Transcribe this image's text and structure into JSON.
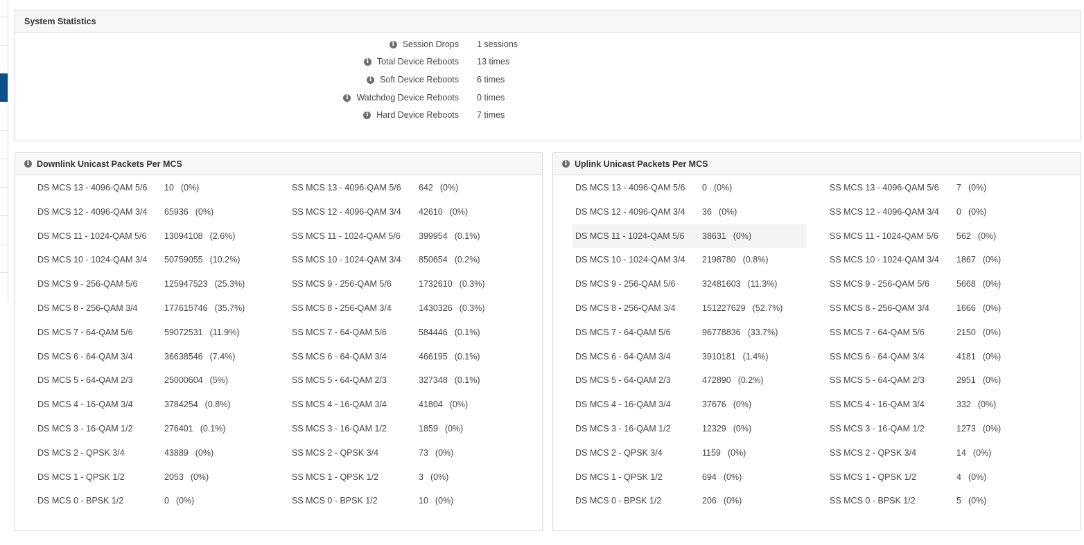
{
  "system_statistics": {
    "title": "System Statistics",
    "rows": [
      {
        "label": "Session Drops",
        "value": "1 sessions"
      },
      {
        "label": "Total Device Reboots",
        "value": "13 times"
      },
      {
        "label": "Soft Device Reboots",
        "value": "6 times"
      },
      {
        "label": "Watchdog Device Reboots",
        "value": "0 times"
      },
      {
        "label": "Hard Device Reboots",
        "value": "7 times"
      }
    ]
  },
  "downlink": {
    "title": "Downlink Unicast Packets Per MCS",
    "ds": [
      {
        "name": "DS MCS 13 - 4096-QAM 5/6",
        "count": "10",
        "pct": "(0%)"
      },
      {
        "name": "DS MCS 12 - 4096-QAM 3/4",
        "count": "65936",
        "pct": "(0%)"
      },
      {
        "name": "DS MCS 11 - 1024-QAM 5/6",
        "count": "13094108",
        "pct": "(2.6%)"
      },
      {
        "name": "DS MCS 10 - 1024-QAM 3/4",
        "count": "50759055",
        "pct": "(10.2%)"
      },
      {
        "name": "DS MCS 9 - 256-QAM 5/6",
        "count": "125947523",
        "pct": "(25.3%)"
      },
      {
        "name": "DS MCS 8 - 256-QAM 3/4",
        "count": "177615746",
        "pct": "(35.7%)"
      },
      {
        "name": "DS MCS 7 - 64-QAM 5/6",
        "count": "59072531",
        "pct": "(11.9%)"
      },
      {
        "name": "DS MCS 6 - 64-QAM 3/4",
        "count": "36638546",
        "pct": "(7.4%)"
      },
      {
        "name": "DS MCS 5 - 64-QAM 2/3",
        "count": "25000604",
        "pct": "(5%)"
      },
      {
        "name": "DS MCS 4 - 16-QAM 3/4",
        "count": "3784254",
        "pct": "(0.8%)"
      },
      {
        "name": "DS MCS 3 - 16-QAM 1/2",
        "count": "276401",
        "pct": "(0.1%)"
      },
      {
        "name": "DS MCS 2 - QPSK 3/4",
        "count": "43889",
        "pct": "(0%)"
      },
      {
        "name": "DS MCS 1 - QPSK 1/2",
        "count": "2053",
        "pct": "(0%)"
      },
      {
        "name": "DS MCS 0 - BPSK 1/2",
        "count": "0",
        "pct": "(0%)"
      }
    ],
    "ss": [
      {
        "name": "SS MCS 13 - 4096-QAM 5/6",
        "count": "642",
        "pct": "(0%)"
      },
      {
        "name": "SS MCS 12 - 4096-QAM 3/4",
        "count": "42610",
        "pct": "(0%)"
      },
      {
        "name": "SS MCS 11 - 1024-QAM 5/6",
        "count": "399954",
        "pct": "(0.1%)"
      },
      {
        "name": "SS MCS 10 - 1024-QAM 3/4",
        "count": "850654",
        "pct": "(0.2%)"
      },
      {
        "name": "SS MCS 9 - 256-QAM 5/6",
        "count": "1732610",
        "pct": "(0.3%)"
      },
      {
        "name": "SS MCS 8 - 256-QAM 3/4",
        "count": "1430326",
        "pct": "(0.3%)"
      },
      {
        "name": "SS MCS 7 - 64-QAM 5/6",
        "count": "584446",
        "pct": "(0.1%)"
      },
      {
        "name": "SS MCS 6 - 64-QAM 3/4",
        "count": "466195",
        "pct": "(0.1%)"
      },
      {
        "name": "SS MCS 5 - 64-QAM 2/3",
        "count": "327348",
        "pct": "(0.1%)"
      },
      {
        "name": "SS MCS 4 - 16-QAM 3/4",
        "count": "41804",
        "pct": "(0%)"
      },
      {
        "name": "SS MCS 3 - 16-QAM 1/2",
        "count": "1859",
        "pct": "(0%)"
      },
      {
        "name": "SS MCS 2 - QPSK 3/4",
        "count": "73",
        "pct": "(0%)"
      },
      {
        "name": "SS MCS 1 - QPSK 1/2",
        "count": "3",
        "pct": "(0%)"
      },
      {
        "name": "SS MCS 0 - BPSK 1/2",
        "count": "10",
        "pct": "(0%)"
      }
    ]
  },
  "uplink": {
    "title": "Uplink Unicast Packets Per MCS",
    "ds": [
      {
        "name": "DS MCS 13 - 4096-QAM 5/6",
        "count": "0",
        "pct": "(0%)"
      },
      {
        "name": "DS MCS 12 - 4096-QAM 3/4",
        "count": "36",
        "pct": "(0%)"
      },
      {
        "name": "DS MCS 11 - 1024-QAM 5/6",
        "count": "38631",
        "pct": "(0%)"
      },
      {
        "name": "DS MCS 10 - 1024-QAM 3/4",
        "count": "2198780",
        "pct": "(0.8%)"
      },
      {
        "name": "DS MCS 9 - 256-QAM 5/6",
        "count": "32481603",
        "pct": "(11.3%)"
      },
      {
        "name": "DS MCS 8 - 256-QAM 3/4",
        "count": "151227629",
        "pct": "(52.7%)"
      },
      {
        "name": "DS MCS 7 - 64-QAM 5/6",
        "count": "96778836",
        "pct": "(33.7%)"
      },
      {
        "name": "DS MCS 6 - 64-QAM 3/4",
        "count": "3910181",
        "pct": "(1.4%)"
      },
      {
        "name": "DS MCS 5 - 64-QAM 2/3",
        "count": "472890",
        "pct": "(0.2%)"
      },
      {
        "name": "DS MCS 4 - 16-QAM 3/4",
        "count": "37676",
        "pct": "(0%)"
      },
      {
        "name": "DS MCS 3 - 16-QAM 1/2",
        "count": "12329",
        "pct": "(0%)"
      },
      {
        "name": "DS MCS 2 - QPSK 3/4",
        "count": "1159",
        "pct": "(0%)"
      },
      {
        "name": "DS MCS 1 - QPSK 1/2",
        "count": "694",
        "pct": "(0%)"
      },
      {
        "name": "DS MCS 0 - BPSK 1/2",
        "count": "206",
        "pct": "(0%)"
      }
    ],
    "ss": [
      {
        "name": "SS MCS 13 - 4096-QAM 5/6",
        "count": "7",
        "pct": "(0%)"
      },
      {
        "name": "SS MCS 12 - 4096-QAM 3/4",
        "count": "0",
        "pct": "(0%)"
      },
      {
        "name": "SS MCS 11 - 1024-QAM 5/6",
        "count": "562",
        "pct": "(0%)"
      },
      {
        "name": "SS MCS 10 - 1024-QAM 3/4",
        "count": "1867",
        "pct": "(0%)"
      },
      {
        "name": "SS MCS 9 - 256-QAM 5/6",
        "count": "5668",
        "pct": "(0%)"
      },
      {
        "name": "SS MCS 8 - 256-QAM 3/4",
        "count": "1666",
        "pct": "(0%)"
      },
      {
        "name": "SS MCS 7 - 64-QAM 5/6",
        "count": "2150",
        "pct": "(0%)"
      },
      {
        "name": "SS MCS 6 - 64-QAM 3/4",
        "count": "4181",
        "pct": "(0%)"
      },
      {
        "name": "SS MCS 5 - 64-QAM 2/3",
        "count": "2951",
        "pct": "(0%)"
      },
      {
        "name": "SS MCS 4 - 16-QAM 3/4",
        "count": "332",
        "pct": "(0%)"
      },
      {
        "name": "SS MCS 3 - 16-QAM 1/2",
        "count": "1273",
        "pct": "(0%)"
      },
      {
        "name": "SS MCS 2 - QPSK 3/4",
        "count": "14",
        "pct": "(0%)"
      },
      {
        "name": "SS MCS 1 - QPSK 1/2",
        "count": "4",
        "pct": "(0%)"
      },
      {
        "name": "SS MCS 0 - BPSK 1/2",
        "count": "5",
        "pct": "(0%)"
      }
    ]
  },
  "icons": {
    "info": "info-circle-icon",
    "info_glyph": "i"
  },
  "colors": {
    "sidebar_active": "#0d4f8b",
    "panel_header_bg": "#f7f7f7",
    "border": "#dadada",
    "row_hover": "#f4f4f4"
  }
}
